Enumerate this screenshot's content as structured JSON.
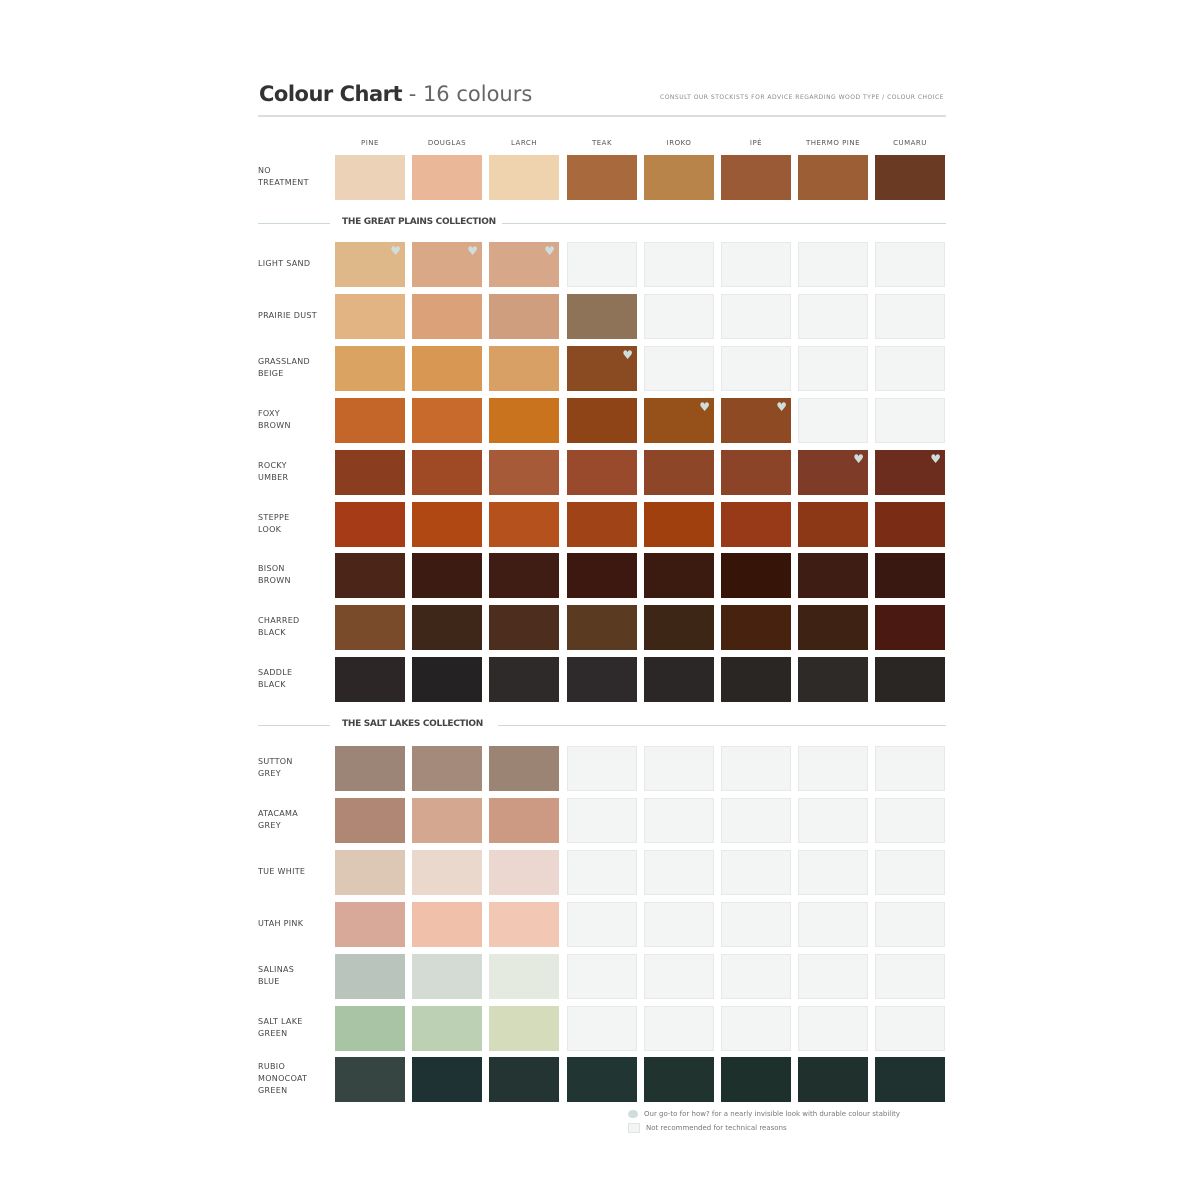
{
  "header": {
    "title_bold": "Colour Chart",
    "title_rest": " - 16 colours",
    "subtitle": "CONSULT OUR STOCKISTS FOR ADVICE REGARDING WOOD TYPE / COLOUR CHOICE"
  },
  "columns": [
    "PINE",
    "DOUGLAS",
    "LARCH",
    "TEAK",
    "IROKO",
    "IPÉ",
    "THERMO PINE",
    "CUMARU"
  ],
  "colors": {
    "not_recommended": "#f3f4f4",
    "heart": "#cfdedd",
    "rule": "#dddddd"
  },
  "base_row": {
    "label": "NO\nTREATMENT",
    "swatches": [
      "#ecd2b6",
      "#eab898",
      "#efd3ae",
      "#a86a3c",
      "#b98449",
      "#9a5a35",
      "#9c5e34",
      "#6b3a22"
    ],
    "hearts": []
  },
  "sections": [
    {
      "title": "THE GREAT PLAINS COLLECTION",
      "rows": [
        {
          "label": "LIGHT SAND",
          "swatches": [
            "#dfb88a",
            "#d9a886",
            "#d6a789",
            null,
            null,
            null,
            null,
            null
          ],
          "hearts": [
            0,
            1,
            2
          ]
        },
        {
          "label": "PRAIRIE DUST",
          "swatches": [
            "#e2b383",
            "#dba27a",
            "#cf9e7f",
            "#8f7358",
            null,
            null,
            null,
            null
          ],
          "hearts": []
        },
        {
          "label": "GRASSLAND\nBEIGE",
          "swatches": [
            "#dba362",
            "#d99754",
            "#d9a065",
            "#8a4a22",
            null,
            null,
            null,
            null
          ],
          "hearts": [
            3
          ]
        },
        {
          "label": "FOXY\nBROWN",
          "swatches": [
            "#c4662a",
            "#c86a2c",
            "#c9731f",
            "#8f4418",
            "#96501a",
            "#8e4a22",
            null,
            null
          ],
          "hearts": [
            4,
            5
          ]
        },
        {
          "label": "ROCKY\nUMBER",
          "swatches": [
            "#8a3e1f",
            "#a04a25",
            "#a65a38",
            "#9a4a2c",
            "#8e4628",
            "#8c4428",
            "#7e3c28",
            "#6c2c1e"
          ],
          "hearts": [
            6,
            7
          ]
        },
        {
          "label": "STEPPE\nLOOK",
          "swatches": [
            "#a53c17",
            "#b04814",
            "#b5511d",
            "#a04317",
            "#a0400f",
            "#983a18",
            "#8c3716",
            "#7a2d14"
          ],
          "hearts": []
        },
        {
          "label": "BISON\nBROWN",
          "swatches": [
            "#4a2518",
            "#3c1c12",
            "#3f1c14",
            "#3d1810",
            "#3b1a10",
            "#361408",
            "#3e1e14",
            "#381810"
          ],
          "hearts": []
        },
        {
          "label": "CHARRED\nBLACK",
          "swatches": [
            "#7a4b2a",
            "#3e2618",
            "#4d2e1e",
            "#5a3a20",
            "#3e2616",
            "#46220f",
            "#3e2214",
            "#4a1a12"
          ],
          "hearts": []
        },
        {
          "label": "SADDLE\nBLACK",
          "swatches": [
            "#2c2626",
            "#252224",
            "#2e2a2a",
            "#2e2a2b",
            "#2a2726",
            "#2a2624",
            "#2e2a28",
            "#2a2624"
          ],
          "hearts": []
        }
      ]
    },
    {
      "title": "THE SALT LAKES COLLECTION",
      "rows": [
        {
          "label": "SUTTON\nGREY",
          "swatches": [
            "#9c8576",
            "#a48a7a",
            "#9c8474",
            null,
            null,
            null,
            null,
            null
          ],
          "hearts": []
        },
        {
          "label": "ATACAMA\nGREY",
          "swatches": [
            "#b08674",
            "#d4a890",
            "#cc9a82",
            null,
            null,
            null,
            null,
            null
          ],
          "hearts": []
        },
        {
          "label": "TUE WHITE",
          "swatches": [
            "#dcc8b4",
            "#ead8cc",
            "#ecd6d0",
            null,
            null,
            null,
            null,
            null
          ],
          "hearts": []
        },
        {
          "label": "UTAH PINK",
          "swatches": [
            "#d8a898",
            "#f0c0aa",
            "#f2c8b4",
            null,
            null,
            null,
            null,
            null
          ],
          "hearts": []
        },
        {
          "label": "SALINAS\nBLUE",
          "swatches": [
            "#b8c4bc",
            "#d4dad4",
            "#e4eae0",
            null,
            null,
            null,
            null,
            null
          ],
          "hearts": []
        },
        {
          "label": "SALT LAKE\nGREEN",
          "swatches": [
            "#a8c4a4",
            "#bcd0b4",
            "#d4dcbc",
            null,
            null,
            null,
            null,
            null
          ],
          "hearts": []
        },
        {
          "label": "RUBIO\nMONOCOAT\nGREEN",
          "swatches": [
            "#364442",
            "#1e3234",
            "#233432",
            "#213632",
            "#21332f",
            "#1e302c",
            "#20302c",
            "#203230"
          ],
          "hearts": []
        }
      ]
    }
  ],
  "legend": [
    {
      "icon": "heart-icon",
      "text": "Our go-to for how? for a nearly invisible look with durable colour stability"
    },
    {
      "icon": "empty-swatch-icon",
      "text": "Not recommended for technical reasons"
    }
  ]
}
